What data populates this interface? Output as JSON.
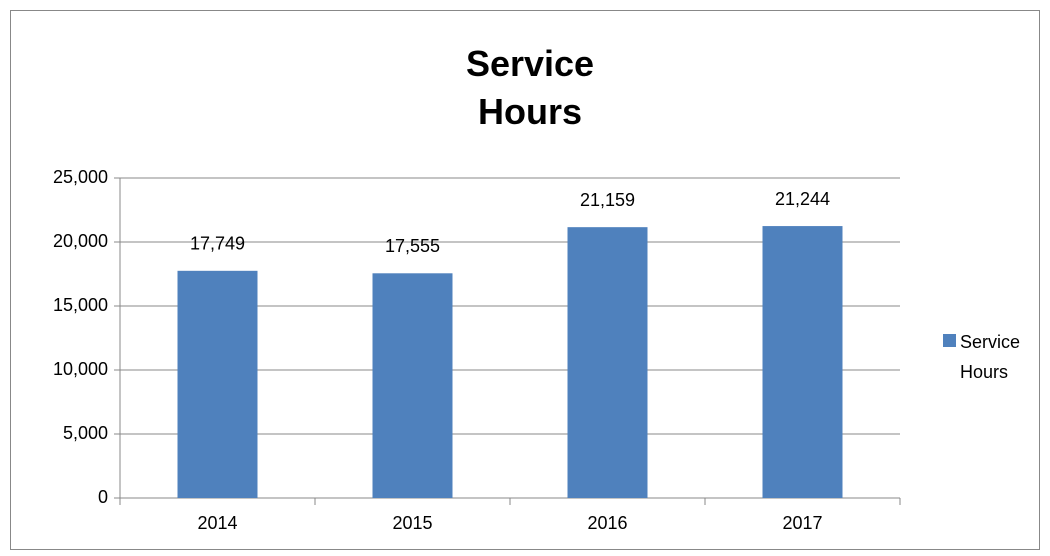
{
  "chart_data": {
    "type": "bar",
    "title": "Service Hours",
    "categories": [
      "2014",
      "2015",
      "2016",
      "2017"
    ],
    "series": [
      {
        "name": "Service Hours",
        "color": "#4f81bd",
        "values": [
          17749,
          17555,
          21159,
          21244
        ],
        "value_labels": [
          "17,749",
          "17,555",
          "21,159",
          "21,244"
        ]
      }
    ],
    "ylim": [
      0,
      25000
    ],
    "yticks": [
      0,
      {
        "value": 5000,
        "label": "5,000"
      },
      {
        "value": 10000,
        "label": "10,000"
      },
      {
        "value": 15000,
        "label": "15,000"
      },
      {
        "value": 20000,
        "label": "20,000"
      },
      {
        "value": 25000,
        "label": "25,000"
      }
    ],
    "grid": true,
    "legend": "right"
  }
}
